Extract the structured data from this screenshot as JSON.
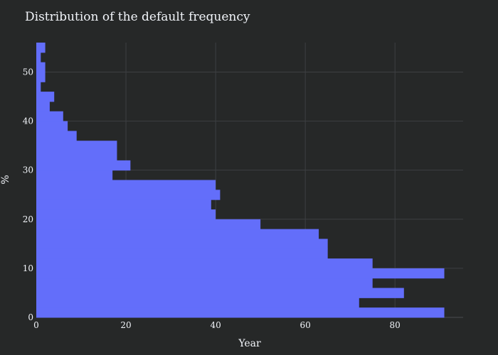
{
  "chart_data": {
    "type": "bar",
    "orientation": "horizontal",
    "title": "Distribution of the default frequency",
    "xlabel": "Year",
    "ylabel": "%",
    "xlim": [
      0,
      95.2
    ],
    "ylim": [
      0,
      56
    ],
    "xticks": [
      0,
      20,
      40,
      60,
      80
    ],
    "yticks": [
      0,
      10,
      20,
      30,
      40,
      50
    ],
    "grid": true,
    "legend": "none",
    "bar_color": "#636efa",
    "background_color": "#262828",
    "grid_color": "#3d3f42",
    "bins": [
      {
        "y0": 0,
        "y1": 2,
        "x": 91
      },
      {
        "y0": 2,
        "y1": 4,
        "x": 72
      },
      {
        "y0": 4,
        "y1": 6,
        "x": 82
      },
      {
        "y0": 6,
        "y1": 8,
        "x": 75
      },
      {
        "y0": 8,
        "y1": 10,
        "x": 91
      },
      {
        "y0": 10,
        "y1": 12,
        "x": 75
      },
      {
        "y0": 12,
        "y1": 14,
        "x": 65
      },
      {
        "y0": 14,
        "y1": 16,
        "x": 65
      },
      {
        "y0": 16,
        "y1": 18,
        "x": 63
      },
      {
        "y0": 18,
        "y1": 20,
        "x": 50
      },
      {
        "y0": 20,
        "y1": 22,
        "x": 40
      },
      {
        "y0": 22,
        "y1": 24,
        "x": 39
      },
      {
        "y0": 24,
        "y1": 26,
        "x": 41
      },
      {
        "y0": 26,
        "y1": 28,
        "x": 40
      },
      {
        "y0": 28,
        "y1": 30,
        "x": 17
      },
      {
        "y0": 30,
        "y1": 32,
        "x": 21
      },
      {
        "y0": 32,
        "y1": 34,
        "x": 18
      },
      {
        "y0": 34,
        "y1": 36,
        "x": 18
      },
      {
        "y0": 36,
        "y1": 38,
        "x": 9
      },
      {
        "y0": 38,
        "y1": 40,
        "x": 7
      },
      {
        "y0": 40,
        "y1": 42,
        "x": 6
      },
      {
        "y0": 42,
        "y1": 44,
        "x": 3
      },
      {
        "y0": 44,
        "y1": 46,
        "x": 4
      },
      {
        "y0": 46,
        "y1": 48,
        "x": 1
      },
      {
        "y0": 48,
        "y1": 50,
        "x": 2
      },
      {
        "y0": 50,
        "y1": 52,
        "x": 2
      },
      {
        "y0": 52,
        "y1": 54,
        "x": 1
      },
      {
        "y0": 54,
        "y1": 56,
        "x": 2
      }
    ]
  }
}
